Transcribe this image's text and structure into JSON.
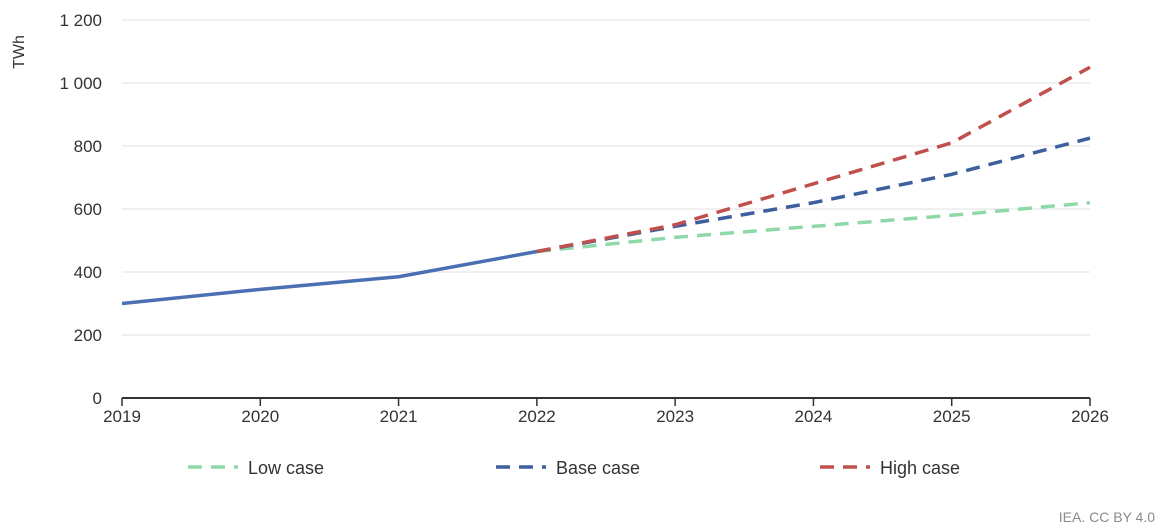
{
  "chart_data": {
    "type": "line",
    "ylabel": "TWh",
    "ylim": [
      0,
      1200
    ],
    "xlim": [
      2019,
      2026
    ],
    "x_ticks": [
      "2019",
      "2020",
      "2021",
      "2022",
      "2023",
      "2024",
      "2025",
      "2026"
    ],
    "y_ticks": [
      {
        "value": 0,
        "label": "0"
      },
      {
        "value": 200,
        "label": "200"
      },
      {
        "value": 400,
        "label": "400"
      },
      {
        "value": 600,
        "label": "600"
      },
      {
        "value": 800,
        "label": "800"
      },
      {
        "value": 1000,
        "label": "1 000"
      },
      {
        "value": 1200,
        "label": "1 200"
      }
    ],
    "grid": true,
    "legend_position": "bottom",
    "series": [
      {
        "style": "solid",
        "color": "#4a6fb3",
        "x": [
          2019,
          2020,
          2021,
          2022
        ],
        "y": [
          300,
          345,
          385,
          465
        ]
      },
      {
        "name": "Low case",
        "style": "dashed",
        "color": "#8fd9a8",
        "x": [
          2022,
          2023,
          2024,
          2025,
          2026
        ],
        "y": [
          465,
          510,
          545,
          580,
          620
        ]
      },
      {
        "name": "Base case",
        "style": "dashed",
        "color": "#3d5f9e",
        "x": [
          2022,
          2023,
          2024,
          2025,
          2026
        ],
        "y": [
          465,
          545,
          620,
          710,
          825
        ]
      },
      {
        "name": "High case",
        "style": "dashed",
        "color": "#c0504d",
        "x": [
          2022,
          2023,
          2024,
          2025,
          2026
        ],
        "y": [
          465,
          550,
          680,
          810,
          1050
        ]
      }
    ]
  },
  "source": "IEA. CC BY 4.0"
}
